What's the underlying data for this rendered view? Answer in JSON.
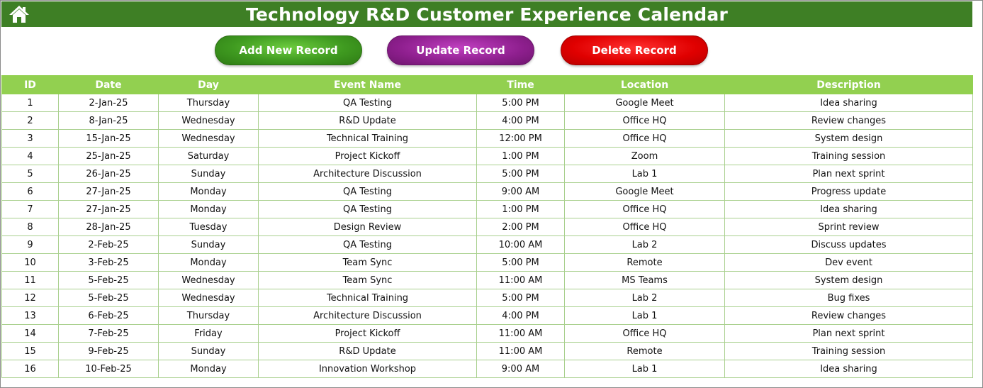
{
  "header": {
    "title": "Technology R&D Customer Experience Calendar",
    "home_icon": "home-icon"
  },
  "toolbar": {
    "add_label": "Add New Record",
    "update_label": "Update Record",
    "delete_label": "Delete Record"
  },
  "colors": {
    "title_bar": "#3e7f25",
    "header_row": "#92d050",
    "add_button": "#3f9a20",
    "update_button": "#8e1f8e",
    "delete_button": "#e00000"
  },
  "table": {
    "columns": [
      "ID",
      "Date",
      "Day",
      "Event Name",
      "Time",
      "Location",
      "Description"
    ],
    "rows": [
      [
        "1",
        "2-Jan-25",
        "Thursday",
        "QA Testing",
        "5:00 PM",
        "Google Meet",
        "Idea sharing"
      ],
      [
        "2",
        "8-Jan-25",
        "Wednesday",
        "R&D Update",
        "4:00 PM",
        "Office HQ",
        "Review changes"
      ],
      [
        "3",
        "15-Jan-25",
        "Wednesday",
        "Technical Training",
        "12:00 PM",
        "Office HQ",
        "System design"
      ],
      [
        "4",
        "25-Jan-25",
        "Saturday",
        "Project Kickoff",
        "1:00 PM",
        "Zoom",
        "Training session"
      ],
      [
        "5",
        "26-Jan-25",
        "Sunday",
        "Architecture Discussion",
        "5:00 PM",
        "Lab 1",
        "Plan next sprint"
      ],
      [
        "6",
        "27-Jan-25",
        "Monday",
        "QA Testing",
        "9:00 AM",
        "Google Meet",
        "Progress update"
      ],
      [
        "7",
        "27-Jan-25",
        "Monday",
        "QA Testing",
        "1:00 PM",
        "Office HQ",
        "Idea sharing"
      ],
      [
        "8",
        "28-Jan-25",
        "Tuesday",
        "Design Review",
        "2:00 PM",
        "Office HQ",
        "Sprint review"
      ],
      [
        "9",
        "2-Feb-25",
        "Sunday",
        "QA Testing",
        "10:00 AM",
        "Lab 2",
        "Discuss updates"
      ],
      [
        "10",
        "3-Feb-25",
        "Monday",
        "Team Sync",
        "5:00 PM",
        "Remote",
        "Dev event"
      ],
      [
        "11",
        "5-Feb-25",
        "Wednesday",
        "Team Sync",
        "11:00 AM",
        "MS Teams",
        "System design"
      ],
      [
        "12",
        "5-Feb-25",
        "Wednesday",
        "Technical Training",
        "5:00 PM",
        "Lab 2",
        "Bug fixes"
      ],
      [
        "13",
        "6-Feb-25",
        "Thursday",
        "Architecture Discussion",
        "4:00 PM",
        "Lab 1",
        "Review changes"
      ],
      [
        "14",
        "7-Feb-25",
        "Friday",
        "Project Kickoff",
        "11:00 AM",
        "Office HQ",
        "Plan next sprint"
      ],
      [
        "15",
        "9-Feb-25",
        "Sunday",
        "R&D Update",
        "11:00 AM",
        "Remote",
        "Training session"
      ],
      [
        "16",
        "10-Feb-25",
        "Monday",
        "Innovation Workshop",
        "9:00 AM",
        "Lab 1",
        "Idea sharing"
      ]
    ]
  }
}
